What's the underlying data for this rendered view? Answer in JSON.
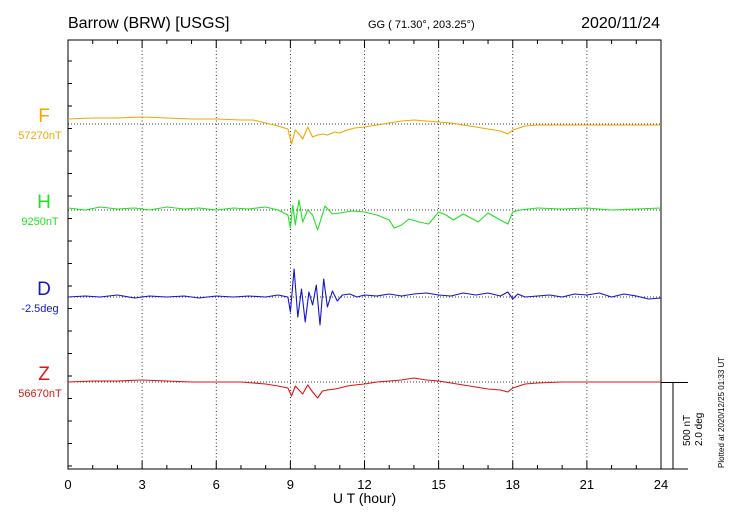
{
  "header": {
    "station": "Barrow (BRW)  [USGS]",
    "coords": "GG ( 71.30°, 203.25°)",
    "date": "2020/11/24"
  },
  "plotted_note": "Plotted at 2020/12/25 01:33 UT",
  "scale": {
    "line1": "500 nT",
    "line2": "2.0 deg"
  },
  "chart_data": {
    "type": "line",
    "title": "Barrow (BRW)  [USGS]",
    "xlabel": "U T (hour)",
    "xlim": [
      0,
      24
    ],
    "x_ticks": [
      0,
      3,
      6,
      9,
      12,
      15,
      18,
      21,
      24
    ],
    "grid": true,
    "series": [
      {
        "name": "F",
        "baseline_label": "57270nT",
        "color": "#f0a800",
        "x": [
          0,
          1,
          2,
          3,
          4,
          5,
          6,
          7,
          7.5,
          8,
          8.5,
          8.9,
          9.05,
          9.2,
          9.35,
          9.5,
          9.7,
          9.9,
          10.1,
          10.3,
          10.5,
          10.8,
          11,
          11.3,
          11.6,
          12,
          12.5,
          13,
          13.5,
          14,
          14.5,
          15,
          15.5,
          16,
          16.5,
          17,
          17.5,
          17.8,
          18,
          18.5,
          19,
          20,
          21,
          22,
          23,
          24
        ],
        "y": [
          5,
          6,
          6,
          7,
          6,
          5,
          5,
          4,
          4,
          1,
          -2,
          -5,
          -20,
          -6,
          -10,
          -15,
          -3,
          -13,
          -11,
          -10,
          -11,
          -8,
          -9,
          -6,
          -4,
          -3,
          -1,
          1,
          3,
          4,
          3,
          2,
          1,
          -1,
          -3,
          -5,
          -7,
          -10,
          -6,
          -2,
          -1,
          -1,
          -1,
          -1,
          -1,
          -1
        ]
      },
      {
        "name": "H",
        "baseline_label": "9250nT",
        "color": "#22e022",
        "x": [
          0,
          0.7,
          1.3,
          2,
          2.7,
          3.3,
          4,
          4.7,
          5.3,
          6,
          6.7,
          7.3,
          8,
          8.5,
          8.9,
          9,
          9.1,
          9.2,
          9.35,
          9.5,
          9.7,
          9.9,
          10.1,
          10.4,
          10.7,
          11,
          11.5,
          12,
          12.5,
          13,
          13.2,
          13.5,
          13.8,
          14.2,
          14.6,
          15,
          15.3,
          15.6,
          16,
          16.3,
          16.6,
          17,
          17.5,
          17.8,
          18,
          18.3,
          19,
          20,
          21,
          22,
          23,
          24
        ],
        "y": [
          2,
          0,
          3,
          1,
          2,
          0,
          3,
          1,
          2,
          0,
          2,
          1,
          3,
          0,
          -5,
          -18,
          5,
          -15,
          10,
          -12,
          0,
          -5,
          -20,
          4,
          -4,
          -3,
          -1,
          -2,
          -5,
          -10,
          -18,
          -15,
          -9,
          -12,
          -14,
          -2,
          -5,
          -10,
          -4,
          -8,
          -12,
          -3,
          -10,
          -14,
          -2,
          0,
          2,
          1,
          2,
          0,
          1,
          2
        ]
      },
      {
        "name": "D",
        "baseline_label": "-2.5deg",
        "color": "#1414d2",
        "x": [
          0,
          0.7,
          1.3,
          2,
          2.7,
          3.3,
          4,
          4.7,
          5.3,
          6,
          6.7,
          7.3,
          8,
          8.5,
          8.9,
          9,
          9.15,
          9.3,
          9.45,
          9.6,
          9.75,
          9.9,
          10.05,
          10.2,
          10.35,
          10.5,
          10.7,
          10.9,
          11.1,
          11.4,
          11.7,
          12,
          12.5,
          13,
          13.5,
          14,
          14.5,
          15,
          15.5,
          16,
          16.5,
          17,
          17.5,
          17.8,
          18,
          18.2,
          18.5,
          19,
          19.5,
          20,
          20.5,
          21,
          21.5,
          22,
          22.5,
          23,
          23.5,
          24
        ],
        "y": [
          0,
          1,
          0,
          2,
          -1,
          1,
          0,
          1,
          -1,
          1,
          0,
          1,
          0,
          2,
          0,
          -15,
          28,
          -20,
          8,
          -25,
          5,
          -8,
          12,
          -28,
          18,
          -10,
          6,
          -4,
          2,
          3,
          0,
          2,
          1,
          3,
          1,
          3,
          4,
          2,
          1,
          4,
          2,
          4,
          1,
          5,
          -2,
          3,
          0,
          1,
          2,
          0,
          3,
          2,
          4,
          0,
          3,
          1,
          -2,
          -1
        ]
      },
      {
        "name": "Z",
        "baseline_label": "56670nT",
        "color": "#e01414",
        "x": [
          0,
          1,
          2,
          3,
          4,
          5,
          6,
          7,
          7.5,
          8,
          8.5,
          8.9,
          9.05,
          9.2,
          9.35,
          9.5,
          9.7,
          9.9,
          10.1,
          10.3,
          10.5,
          10.8,
          11,
          11.3,
          11.6,
          12,
          12.5,
          13,
          13.5,
          14,
          14.5,
          15,
          15.5,
          16,
          16.5,
          17,
          17.5,
          17.8,
          18,
          18.5,
          19,
          20,
          21,
          22,
          23,
          24
        ],
        "y": [
          0,
          1,
          1,
          2,
          1,
          0,
          0,
          0,
          -1,
          -2,
          -4,
          -6,
          -14,
          -4,
          -8,
          -12,
          -3,
          -10,
          -16,
          -9,
          -8,
          -7,
          -6,
          -4,
          -3,
          -2,
          0,
          1,
          2,
          4,
          2,
          1,
          -1,
          -3,
          -5,
          -7,
          -8,
          -10,
          -6,
          -2,
          -1,
          0,
          0,
          0,
          0,
          0
        ]
      }
    ]
  }
}
